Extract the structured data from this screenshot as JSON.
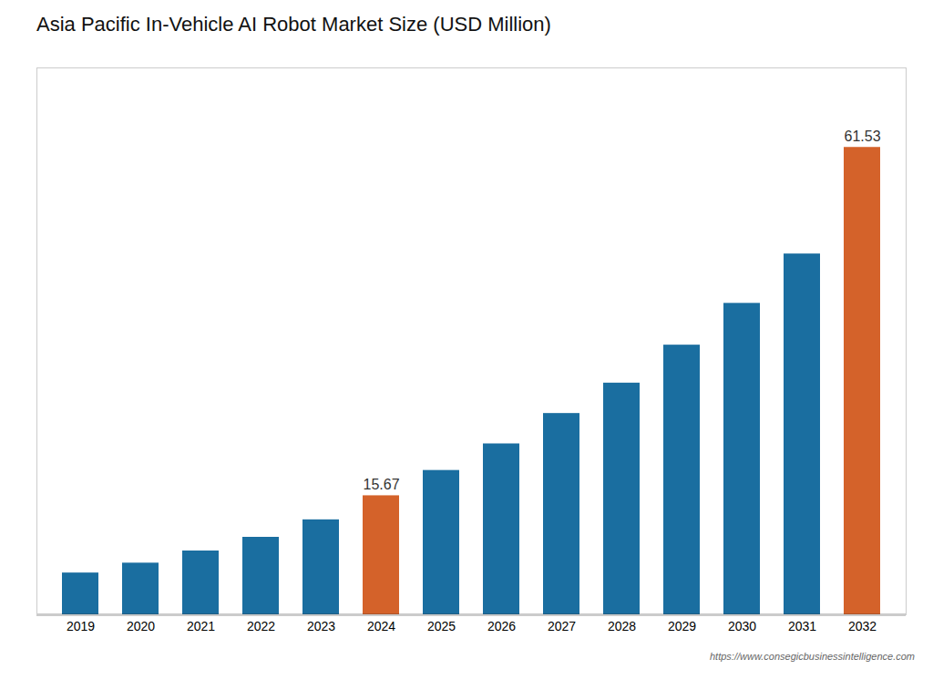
{
  "chart_data": {
    "type": "bar",
    "title": "Asia Pacific In-Vehicle AI Robot Market Size (USD Million)",
    "caption": "https://www.consegicbusinessintelligence.com",
    "categories": [
      "2019",
      "2020",
      "2021",
      "2022",
      "2023",
      "2024",
      "2025",
      "2026",
      "2027",
      "2028",
      "2029",
      "2030",
      "2031",
      "2032"
    ],
    "values": [
      5.5,
      6.8,
      8.4,
      10.2,
      12.5,
      15.67,
      19.0,
      22.5,
      26.5,
      30.5,
      35.5,
      41.0,
      47.5,
      61.53
    ],
    "colors": [
      "#1a6ea0",
      "#1a6ea0",
      "#1a6ea0",
      "#1a6ea0",
      "#1a6ea0",
      "#d4622a",
      "#1a6ea0",
      "#1a6ea0",
      "#1a6ea0",
      "#1a6ea0",
      "#1a6ea0",
      "#1a6ea0",
      "#1a6ea0",
      "#d4622a"
    ],
    "annotations": [
      {
        "text": "15.67",
        "x": "2024",
        "y": 15.67
      },
      {
        "text": "61.53",
        "x": "2032",
        "y": 61.53
      }
    ],
    "ylim": [
      0,
      72
    ],
    "grid": false,
    "tick_labels": "x"
  }
}
